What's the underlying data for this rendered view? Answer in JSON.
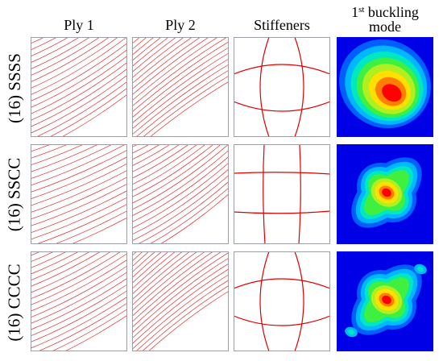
{
  "columns": {
    "ply1": "Ply 1",
    "ply2": "Ply 2",
    "stiffeners": "Stiffeners",
    "buckling_base": "1",
    "buckling_sup": "st",
    "buckling_line1": " buckling",
    "buckling_line2": "mode"
  },
  "rows": [
    {
      "label": "(16) SSSS",
      "stiffener_layout": "curved-bulge"
    },
    {
      "label": "(16) SSCC",
      "stiffener_layout": "near-straight-grid"
    },
    {
      "label": "(16) CCCC",
      "stiffener_layout": "curved-bulge"
    }
  ],
  "colors": {
    "fiber_line": "#e03030",
    "stiffener_line": "#e00000",
    "panel_border": "#9aa0a6",
    "contour_background": "#0000e6",
    "contour_levels": [
      "#0000e6",
      "#0060ff",
      "#00b8ff",
      "#00e8c0",
      "#40f040",
      "#b0f020",
      "#ffe000",
      "#ff8000",
      "#ff0000"
    ]
  }
}
